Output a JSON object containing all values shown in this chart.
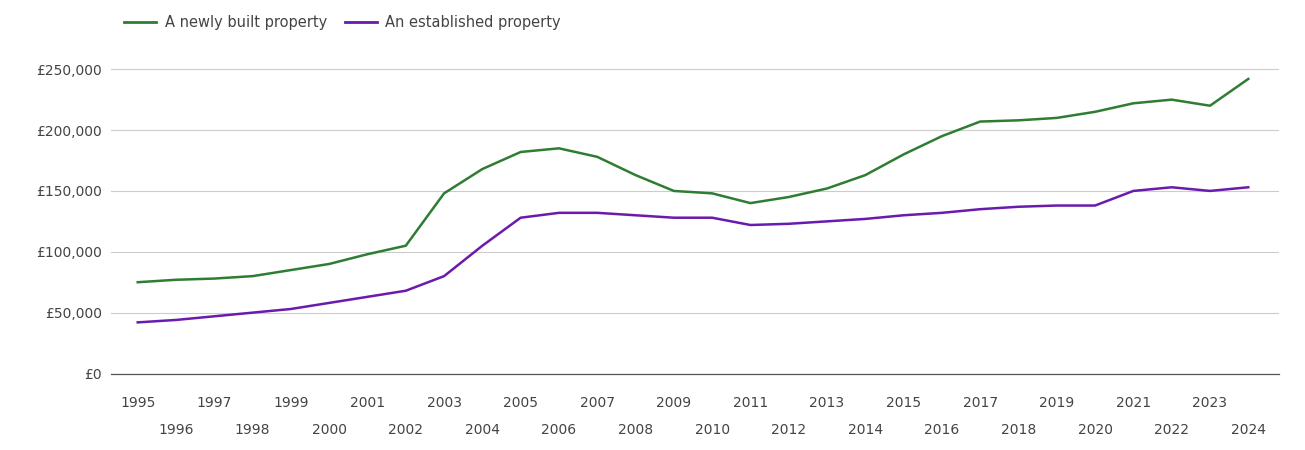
{
  "newly_built": {
    "years": [
      1995,
      1996,
      1997,
      1998,
      1999,
      2000,
      2001,
      2002,
      2003,
      2004,
      2005,
      2006,
      2007,
      2008,
      2009,
      2010,
      2011,
      2012,
      2013,
      2014,
      2015,
      2016,
      2017,
      2018,
      2019,
      2020,
      2021,
      2022,
      2023,
      2024
    ],
    "values": [
      75000,
      77000,
      78000,
      80000,
      85000,
      90000,
      98000,
      105000,
      148000,
      168000,
      182000,
      185000,
      178000,
      163000,
      150000,
      148000,
      140000,
      145000,
      152000,
      163000,
      180000,
      195000,
      207000,
      208000,
      210000,
      215000,
      222000,
      225000,
      220000,
      242000
    ]
  },
  "established": {
    "years": [
      1995,
      1996,
      1997,
      1998,
      1999,
      2000,
      2001,
      2002,
      2003,
      2004,
      2005,
      2006,
      2007,
      2008,
      2009,
      2010,
      2011,
      2012,
      2013,
      2014,
      2015,
      2016,
      2017,
      2018,
      2019,
      2020,
      2021,
      2022,
      2023,
      2024
    ],
    "values": [
      42000,
      44000,
      47000,
      50000,
      53000,
      58000,
      63000,
      68000,
      80000,
      105000,
      128000,
      132000,
      132000,
      130000,
      128000,
      128000,
      122000,
      123000,
      125000,
      127000,
      130000,
      132000,
      135000,
      137000,
      138000,
      138000,
      150000,
      153000,
      150000,
      153000
    ]
  },
  "newly_color": "#2e7d32",
  "established_color": "#6a1aad",
  "line_width": 1.8,
  "legend_labels": [
    "A newly built property",
    "An established property"
  ],
  "ylim": [
    0,
    262500
  ],
  "yticks": [
    0,
    50000,
    100000,
    150000,
    200000,
    250000
  ],
  "ytick_labels": [
    "£0",
    "£50,000",
    "£100,000",
    "£150,000",
    "£200,000",
    "£250,000"
  ],
  "xtick_odd": [
    1995,
    1997,
    1999,
    2001,
    2003,
    2005,
    2007,
    2009,
    2011,
    2013,
    2015,
    2017,
    2019,
    2021,
    2023
  ],
  "xtick_even": [
    1996,
    1998,
    2000,
    2002,
    2004,
    2006,
    2008,
    2010,
    2012,
    2014,
    2016,
    2018,
    2020,
    2022,
    2024
  ],
  "grid_color": "#cccccc",
  "background_color": "#ffffff",
  "text_color": "#444444",
  "font_size": 10,
  "legend_fontsize": 10.5
}
